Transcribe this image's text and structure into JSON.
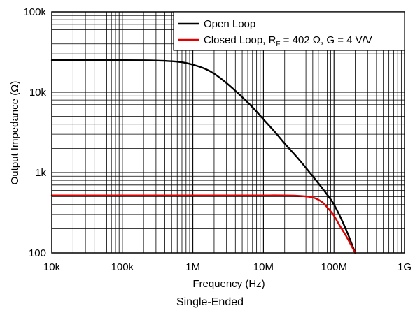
{
  "chart_data": {
    "type": "line",
    "x_scale": "log",
    "y_scale": "log",
    "xlim": [
      10000,
      1000000000
    ],
    "ylim": [
      100,
      100000
    ],
    "xlabel": "Frequency (Hz)",
    "ylabel": "Output Impedance (Ω)",
    "x_ticks": [
      10000,
      100000,
      1000000,
      10000000,
      100000000,
      1000000000
    ],
    "x_tick_labels": [
      "10k",
      "100k",
      "1M",
      "10M",
      "100M",
      "1G"
    ],
    "y_ticks": [
      100,
      1000,
      10000,
      100000
    ],
    "y_tick_labels": [
      "100",
      "1k",
      "10k",
      "100k"
    ],
    "grid": true,
    "legend_position": "top-right",
    "caption": "Single-Ended",
    "series": [
      {
        "name": "Open Loop",
        "color": "#000000",
        "x": [
          10000,
          100000,
          300000,
          500000,
          700000,
          1000000,
          1500000,
          2000000,
          3000000,
          5000000,
          7000000,
          10000000,
          15000000,
          20000000,
          30000000,
          50000000,
          70000000,
          100000000,
          150000000,
          200000000
        ],
        "y": [
          25000,
          25000,
          24800,
          24300,
          23600,
          22000,
          19500,
          17000,
          13000,
          8700,
          6500,
          4600,
          3100,
          2300,
          1550,
          900,
          620,
          400,
          190,
          100
        ]
      },
      {
        "name": "Closed Loop, R_F = 402 Ω, G = 4 V/V",
        "color": "#e00000",
        "x": [
          10000,
          1000000,
          10000000,
          30000000,
          40000000,
          50000000,
          60000000,
          70000000,
          80000000,
          100000000,
          120000000,
          150000000,
          200000000
        ],
        "y": [
          520,
          520,
          520,
          515,
          505,
          490,
          460,
          420,
          370,
          290,
          220,
          160,
          100
        ]
      }
    ]
  },
  "legend": {
    "open_loop": "Open Loop",
    "closed_prefix": "Closed Loop, R",
    "closed_sub": "F",
    "closed_suffix": " = 402 Ω, G = 4 V/V"
  }
}
